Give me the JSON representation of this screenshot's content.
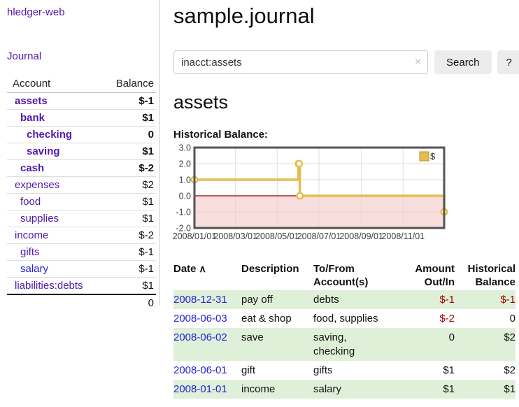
{
  "colors": {
    "purple": "#5218ab",
    "blue": "#2323d8",
    "negative": "#a00000",
    "negative_muted": "#b86e6e",
    "row_green": "#dff0d8",
    "chart_line": "#e3bd4e",
    "chart_negative_fill": "#f6caca",
    "chart_zero_line": "#990000"
  },
  "app": {
    "brand": "hledger-web"
  },
  "sidebar": {
    "nav_journal": "Journal",
    "accounts": {
      "header_account": "Account",
      "header_balance": "Balance",
      "rows": [
        {
          "account": "assets",
          "balance": "$-1"
        },
        {
          "account": "bank",
          "balance": "$1"
        },
        {
          "account": "checking",
          "balance": "0"
        },
        {
          "account": "saving",
          "balance": "$1"
        },
        {
          "account": "cash",
          "balance": "$-2"
        },
        {
          "account": "expenses",
          "balance": "$2"
        },
        {
          "account": "food",
          "balance": "$1"
        },
        {
          "account": "supplies",
          "balance": "$1"
        },
        {
          "account": "income",
          "balance": "$-2"
        },
        {
          "account": "gifts",
          "balance": "$-1"
        },
        {
          "account": "salary",
          "balance": "$-1"
        },
        {
          "account": "liabilities:debts",
          "balance": "$1"
        }
      ],
      "total": "0"
    }
  },
  "main": {
    "title": "sample.journal",
    "search": {
      "value": "inacct:assets",
      "clear_icon": "×",
      "button_label": "Search",
      "help_label": "?"
    },
    "account_heading": "assets",
    "table": {
      "headers": {
        "date": "Date",
        "description": "Description",
        "tofrom": "To/From Account(s)",
        "amount": "Amount Out/In",
        "balance": "Historical Balance"
      },
      "sort_icon": "∧",
      "rows": [
        {
          "date": "2008-12-31",
          "description": "pay off",
          "tofrom": "debts",
          "amount": "$-1",
          "balance": "$-1"
        },
        {
          "date": "2008-06-03",
          "description": "eat & shop",
          "tofrom": "food, supplies",
          "amount": "$-2",
          "balance": "0"
        },
        {
          "date": "2008-06-02",
          "description": "save",
          "tofrom": "saving, checking",
          "amount": "0",
          "balance": "$2"
        },
        {
          "date": "2008-06-01",
          "description": "gift",
          "tofrom": "gifts",
          "amount": "$1",
          "balance": "$2"
        },
        {
          "date": "2008-01-01",
          "description": "income",
          "tofrom": "salary",
          "amount": "$1",
          "balance": "$1"
        }
      ]
    }
  },
  "chart_data": {
    "type": "line",
    "title": "Historical Balance:",
    "step": true,
    "x_range": [
      "2008-01-01",
      "2008-12-31"
    ],
    "ylim": [
      -2,
      3
    ],
    "y_ticks": [
      3.0,
      2.0,
      1.0,
      0.0,
      -1.0,
      -2.0
    ],
    "x_ticks": [
      "2008/01/01",
      "2008/03/01",
      "2008/05/01",
      "2008/07/01",
      "2008/09/01",
      "2008/11/01"
    ],
    "series": [
      {
        "name": "$",
        "color": "#e3bd4e",
        "points": [
          [
            "2008-01-01",
            1
          ],
          [
            "2008-06-01",
            2
          ],
          [
            "2008-06-02",
            2
          ],
          [
            "2008-06-03",
            0
          ],
          [
            "2008-12-31",
            -1
          ]
        ]
      }
    ],
    "legend": {
      "label": "$",
      "position": "top-right"
    },
    "grid": true,
    "negative_fill": "#f6caca",
    "zero_line_color": "#990000"
  }
}
